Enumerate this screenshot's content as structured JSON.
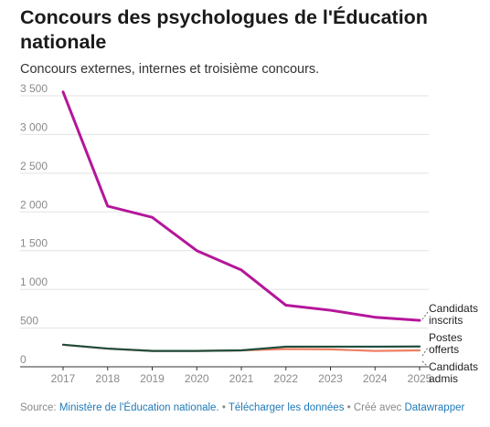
{
  "title": "Concours des psychologues de l'Éducation nationale",
  "subtitle": "Concours externes, internes et troisième concours.",
  "chart_data": {
    "type": "line",
    "x": [
      2017,
      2018,
      2019,
      2020,
      2021,
      2022,
      2023,
      2024,
      2025
    ],
    "ylim": [
      0,
      3500
    ],
    "yticks": [
      0,
      500,
      1000,
      1500,
      2000,
      2500,
      3000,
      3500
    ],
    "ytick_labels": [
      "0",
      "500",
      "1 000",
      "1 500",
      "2 000",
      "2 500",
      "3 000",
      "3 500"
    ],
    "xtick_labels": [
      "2017",
      "2018",
      "2019",
      "2020",
      "2021",
      "2022",
      "2023",
      "2024",
      "2025"
    ],
    "grid": "horizontal",
    "series": [
      {
        "name": "Candidats inscrits",
        "label_lines": [
          "Candidats",
          "inscrits"
        ],
        "color": "#b5169a",
        "values": [
          3550,
          2075,
          1930,
          1500,
          1250,
          795,
          730,
          640,
          600
        ]
      },
      {
        "name": "Postes offerts",
        "label_lines": [
          "Postes",
          "offerts"
        ],
        "color": "#1f4d3d",
        "values": [
          285,
          235,
          205,
          205,
          212,
          260,
          260,
          260,
          262
        ]
      },
      {
        "name": "Candidats admis",
        "label_lines": [
          "Candidats",
          "admis"
        ],
        "color": "#f07f63",
        "values": [
          285,
          235,
          205,
          205,
          212,
          230,
          225,
          205,
          212
        ]
      }
    ]
  },
  "footer": {
    "source_prefix": "Source: ",
    "source_link": "Ministère de l'Éducation nationale.",
    "sep1": " • ",
    "download_link": "Télécharger les données",
    "sep2": " • Créé avec ",
    "tool_link": "Datawrapper"
  }
}
